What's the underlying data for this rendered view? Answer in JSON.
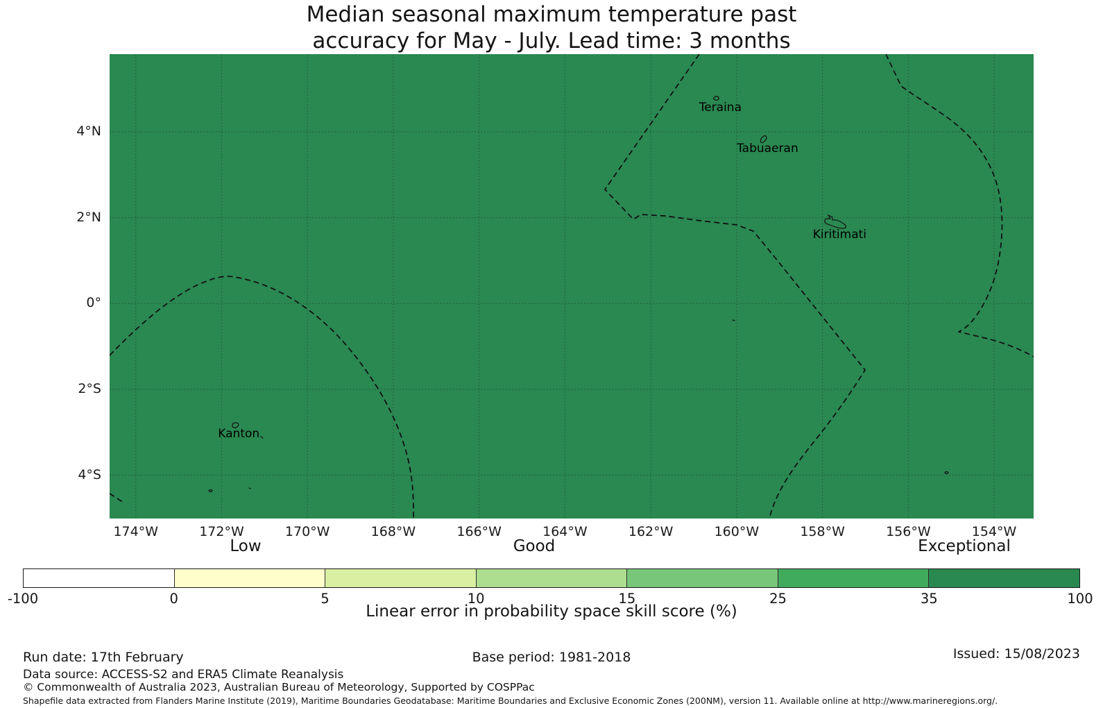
{
  "title": {
    "line1": "Median seasonal maximum temperature past",
    "line2": "accuracy for May - July. Lead time: 3 months"
  },
  "map": {
    "fill_color": "#2A8851",
    "boundary_line_color": "#0d0d0d",
    "extent": {
      "lon_min": -174.61,
      "lon_max": -153.08,
      "lat_min": -5.01,
      "lat_max": 5.81
    },
    "islands": [
      {
        "name": "Teraina",
        "lon": -160.38,
        "lat": 4.57
      },
      {
        "name": "Tabuaeran",
        "lon": -159.28,
        "lat": 3.61
      },
      {
        "name": "Kiritimati",
        "lon": -157.6,
        "lat": 1.6
      },
      {
        "name": "Kanton",
        "lon": -171.6,
        "lat": -3.04
      }
    ]
  },
  "axes": {
    "lon_ticks": [
      {
        "label": "174°W",
        "lon": -174
      },
      {
        "label": "172°W",
        "lon": -172
      },
      {
        "label": "170°W",
        "lon": -170
      },
      {
        "label": "168°W",
        "lon": -168
      },
      {
        "label": "166°W",
        "lon": -166
      },
      {
        "label": "164°W",
        "lon": -164
      },
      {
        "label": "162°W",
        "lon": -162
      },
      {
        "label": "160°W",
        "lon": -160
      },
      {
        "label": "158°W",
        "lon": -158
      },
      {
        "label": "156°W",
        "lon": -156
      },
      {
        "label": "154°W",
        "lon": -154
      }
    ],
    "lat_ticks": [
      {
        "label": "4°N",
        "lat": 4
      },
      {
        "label": "2°N",
        "lat": 2
      },
      {
        "label": "0°",
        "lat": 0
      },
      {
        "label": "2°S",
        "lat": -2
      },
      {
        "label": "4°S",
        "lat": -4
      }
    ]
  },
  "colorbar": {
    "label": "Linear error in probability space skill score (%)",
    "tick_values": [
      "-100",
      "0",
      "5",
      "10",
      "15",
      "25",
      "35",
      "100"
    ],
    "segments": [
      {
        "range": "-100 to 0",
        "color": "#FFFFFF"
      },
      {
        "range": "0 to 5",
        "color": "#FFFFCC"
      },
      {
        "range": "5 to 10",
        "color": "#D9F0A3"
      },
      {
        "range": "10 to 15",
        "color": "#ADDD8E"
      },
      {
        "range": "15 to 25",
        "color": "#78C679"
      },
      {
        "range": "25 to 35",
        "color": "#41AB5D"
      },
      {
        "range": "35 to 100",
        "color": "#2A8851"
      }
    ],
    "categories": [
      {
        "label": "Low"
      },
      {
        "label": "Good"
      },
      {
        "label": "Exceptional"
      }
    ]
  },
  "footer": {
    "run_date": "Run date: 17th February",
    "base_period": "Base period: 1981-2018",
    "issued": "Issued: 15/08/2023",
    "data_source": "Data source: ACCESS-S2 and ERA5 Climate Reanalysis",
    "copyright": "© Commonwealth of Australia 2023, Australian Bureau of Meteorology, Supported by COSPPac",
    "shapefile_note": "Shapefile data extracted from Flanders Marine Institute (2019), Maritime Boundaries Geodatabase: Maritime Boundaries and Exclusive Economic Zones (200NM), version 11. Available online at http://www.marineregions.org/."
  },
  "chart_data": {
    "type": "choropleth_map",
    "title": "Median seasonal maximum temperature past accuracy for May - July. Lead time: 3 months",
    "colorbar_label": "Linear error in probability space skill score (%)",
    "scale_bins": [
      -100,
      0,
      5,
      10,
      15,
      25,
      35,
      100
    ],
    "scale_colors": [
      "#FFFFFF",
      "#FFFFCC",
      "#D9F0A3",
      "#ADDD8E",
      "#78C679",
      "#41AB5D",
      "#2A8851"
    ],
    "scale_categories": [
      "Low",
      "Good",
      "Exceptional"
    ],
    "lon_tick_labels": [
      "174°W",
      "172°W",
      "170°W",
      "168°W",
      "166°W",
      "164°W",
      "162°W",
      "160°W",
      "158°W",
      "156°W",
      "154°W"
    ],
    "lat_tick_labels": [
      "4°N",
      "2°N",
      "0°",
      "2°S",
      "4°S"
    ],
    "labeled_places": [
      "Teraina",
      "Tabuaeran",
      "Kiritimati",
      "Kanton"
    ],
    "region_shading": "entire visible region falls in the 35-100 (Exceptional) color class",
    "overlay": "dashed maritime (EEZ) boundary lines and small island outlines"
  }
}
